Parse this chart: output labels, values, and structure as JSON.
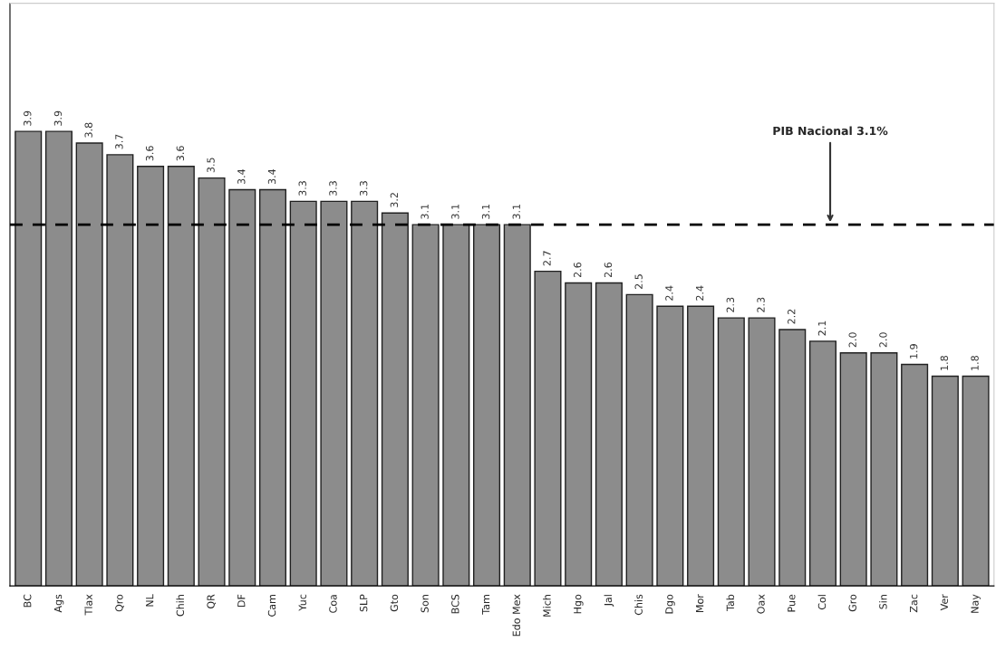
{
  "chart_data": {
    "type": "bar",
    "categories": [
      "BC",
      "Ags",
      "Tlax",
      "Qro",
      "NL",
      "Chih",
      "QR",
      "DF",
      "Cam",
      "Yuc",
      "Coa",
      "SLP",
      "Gto",
      "Son",
      "BCS",
      "Tam",
      "Edo Mex",
      "Mich",
      "Hgo",
      "Jal",
      "Chis",
      "Dgo",
      "Mor",
      "Tab",
      "Oax",
      "Pue",
      "Col",
      "Gro",
      "Sin",
      "Zac",
      "Ver",
      "Nay"
    ],
    "values": [
      3.9,
      3.9,
      3.8,
      3.7,
      3.6,
      3.6,
      3.5,
      3.4,
      3.4,
      3.3,
      3.3,
      3.3,
      3.2,
      3.1,
      3.1,
      3.1,
      3.1,
      2.7,
      2.6,
      2.6,
      2.5,
      2.4,
      2.4,
      2.3,
      2.3,
      2.2,
      2.1,
      2.0,
      2.0,
      1.9,
      1.8,
      1.8
    ],
    "color": "#8c8c8c",
    "ylim": [
      0,
      5
    ],
    "tick_labels": "x",
    "value_labels": [
      "3.9",
      "3.9",
      "3.8",
      "3.7",
      "3.6",
      "3.6",
      "3.5",
      "3.4",
      "3.4",
      "3.3",
      "3.3",
      "3.3",
      "3.2",
      "3.1",
      "3.1",
      "3.1",
      "3.1",
      "2.7",
      "2.6",
      "2.6",
      "2.5",
      "2.4",
      "2.4",
      "2.3",
      "2.3",
      "2.2",
      "2.1",
      "2.0",
      "2.0",
      "1.9",
      "1.8",
      "1.8"
    ],
    "grid": false,
    "ref_lines": [
      {
        "axis": "y",
        "value": 3.1,
        "label": "PIB Nacional 3.1%",
        "color": "#000000",
        "line_style": "dashed"
      }
    ]
  }
}
